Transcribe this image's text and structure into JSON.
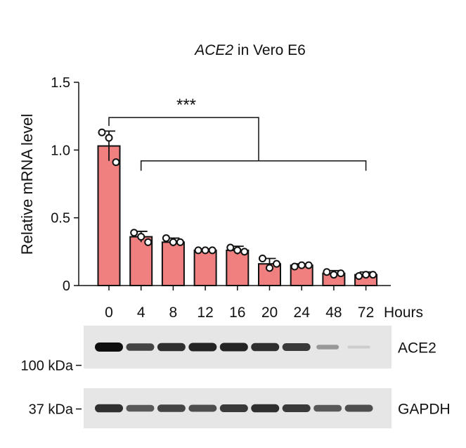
{
  "chart_data": {
    "type": "bar",
    "title_gene": "ACE2",
    "title_rest": " in Vero E6",
    "ylabel": "Relative mRNA level",
    "xlabel": "Hours",
    "ylim": [
      0,
      1.5
    ],
    "yticks": [
      0,
      0.5,
      1.0,
      1.5
    ],
    "ytick_labels": [
      "0",
      "0.5",
      "1.0",
      "1.5"
    ],
    "categories": [
      "0",
      "4",
      "8",
      "12",
      "16",
      "20",
      "24",
      "48",
      "72"
    ],
    "values": [
      1.03,
      0.36,
      0.32,
      0.26,
      0.26,
      0.16,
      0.15,
      0.09,
      0.08
    ],
    "errors": [
      0.11,
      0.04,
      0.03,
      0.01,
      0.03,
      0.04,
      0.01,
      0.02,
      0.02
    ],
    "points": [
      [
        1.13,
        1.09,
        0.91
      ],
      [
        0.39,
        0.36,
        0.32
      ],
      [
        0.35,
        0.32,
        0.32
      ],
      [
        0.26,
        0.26,
        0.26
      ],
      [
        0.28,
        0.26,
        0.25
      ],
      [
        0.2,
        0.13,
        0.16
      ],
      [
        0.14,
        0.15,
        0.15
      ],
      [
        0.1,
        0.08,
        0.09
      ],
      [
        0.07,
        0.08,
        0.08
      ]
    ],
    "significance": "***",
    "bar_color": "#f08080",
    "grid": false
  },
  "blots": [
    {
      "name": "ACE2",
      "size_label": "100 kDa",
      "intensities": [
        1.0,
        0.75,
        0.85,
        0.9,
        0.9,
        0.85,
        0.8,
        0.35,
        0.1
      ]
    },
    {
      "name": "GAPDH",
      "size_label": "37 kDa",
      "intensities": [
        0.85,
        0.65,
        0.75,
        0.7,
        0.8,
        0.85,
        0.8,
        0.65,
        0.7
      ]
    }
  ]
}
